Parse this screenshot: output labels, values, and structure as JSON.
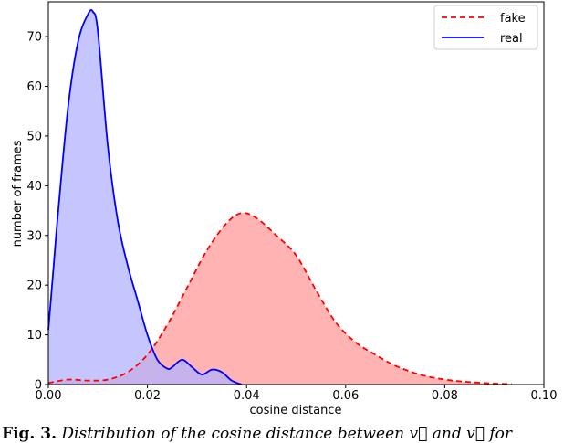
{
  "chart_data": {
    "type": "area",
    "title": "",
    "xlabel": "cosine distance",
    "ylabel": "number of frames",
    "xlim": [
      0.0,
      0.1
    ],
    "ylim": [
      0,
      77
    ],
    "xticks": [
      "0.00",
      "0.02",
      "0.04",
      "0.06",
      "0.08",
      "0.10"
    ],
    "yticks": [
      "0",
      "10",
      "20",
      "30",
      "40",
      "50",
      "60",
      "70"
    ],
    "grid": false,
    "legend_position": "top-right",
    "series": [
      {
        "name": "fake",
        "line_style": "dashed",
        "color": "#ff0000",
        "fill_color": "#ffb3b3",
        "x": [
          0.0,
          0.004,
          0.008,
          0.012,
          0.016,
          0.02,
          0.024,
          0.028,
          0.032,
          0.036,
          0.039,
          0.042,
          0.046,
          0.05,
          0.054,
          0.058,
          0.062,
          0.066,
          0.07,
          0.075,
          0.08,
          0.085,
          0.09,
          0.0935
        ],
        "y": [
          0.3,
          1.0,
          0.8,
          1.0,
          2.5,
          6.0,
          12.0,
          19.5,
          27.0,
          32.5,
          34.5,
          33.5,
          30.0,
          26.0,
          19.0,
          12.5,
          8.5,
          6.0,
          3.8,
          2.0,
          1.0,
          0.5,
          0.2,
          0.1
        ]
      },
      {
        "name": "real",
        "line_style": "solid",
        "color": "#0000ff",
        "fill_color": "#b3b3ff",
        "x": [
          0.0,
          0.001,
          0.002,
          0.004,
          0.006,
          0.008,
          0.009,
          0.01,
          0.012,
          0.014,
          0.016,
          0.018,
          0.02,
          0.022,
          0.024,
          0.025,
          0.027,
          0.029,
          0.031,
          0.033,
          0.035,
          0.037,
          0.039
        ],
        "y": [
          11.0,
          23.0,
          35.0,
          56.0,
          69.0,
          74.5,
          75.0,
          71.0,
          48.0,
          33.0,
          24.0,
          17.0,
          10.0,
          5.0,
          3.2,
          3.5,
          5.0,
          3.5,
          2.0,
          3.0,
          2.5,
          0.8,
          0.0
        ]
      }
    ]
  },
  "caption": {
    "label": "Fig. 3.",
    "text": "Distribution of the cosine distance between v⃗ and v⃗ for"
  }
}
